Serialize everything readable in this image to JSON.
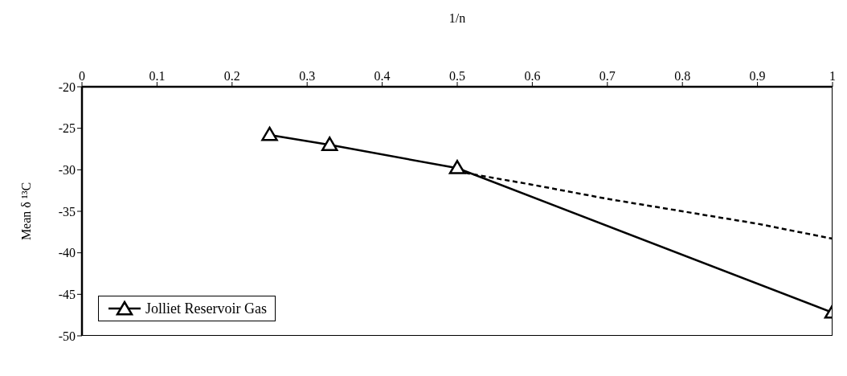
{
  "chart_data": {
    "type": "line",
    "xlabel": "1/n",
    "ylabel": "Mean δ ¹³C",
    "xlim": [
      0,
      1
    ],
    "xticks": [
      0,
      0.1,
      0.2,
      0.3,
      0.4,
      0.5,
      0.6,
      0.7,
      0.8,
      0.9,
      1
    ],
    "ylim": [
      -50,
      -20
    ],
    "yticks": [
      -50,
      -45,
      -40,
      -35,
      -30,
      -25,
      -20
    ],
    "legend": "bottom left",
    "series": [
      {
        "name": "Jolliet Reservoir Gas",
        "color": "#000000",
        "marker": "triangle",
        "line_style": "solid",
        "x": [
          0.25,
          0.33,
          0.5,
          1
        ],
        "values": [
          -25.8,
          -27.0,
          -29.8,
          -47.2
        ]
      },
      {
        "color": "#000000",
        "marker": "none",
        "line_style": "dashed",
        "x": [
          0.5,
          0.6,
          0.7,
          0.8,
          0.9,
          1
        ],
        "values": [
          -30.2,
          -31.8,
          -33.5,
          -35.0,
          -36.5,
          -38.3
        ]
      }
    ]
  }
}
